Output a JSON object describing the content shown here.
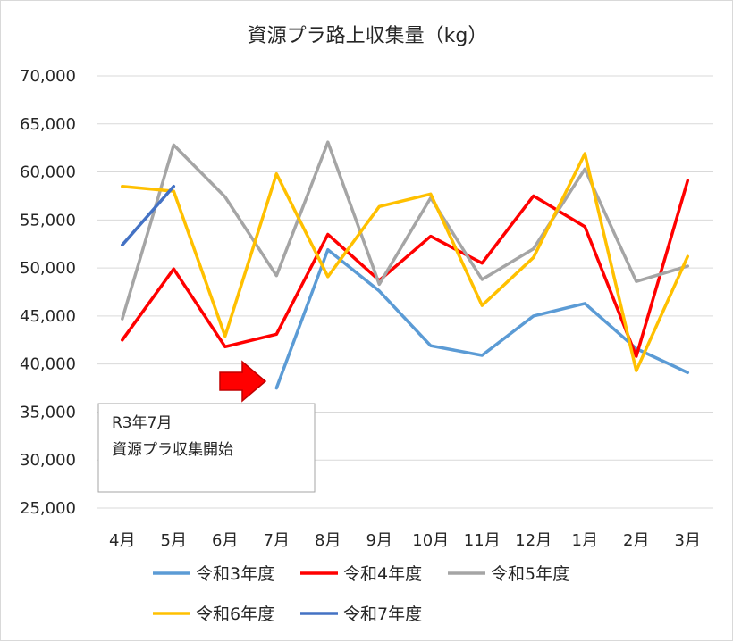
{
  "chart_data": {
    "type": "line",
    "title": "資源プラ路上収集量（kg）",
    "xlabel": "",
    "ylabel": "",
    "categories": [
      "4月",
      "5月",
      "6月",
      "7月",
      "8月",
      "9月",
      "10月",
      "11月",
      "12月",
      "1月",
      "2月",
      "3月"
    ],
    "ylim": [
      25000,
      70000
    ],
    "yticks": [
      25000,
      30000,
      35000,
      40000,
      45000,
      50000,
      55000,
      60000,
      65000,
      70000
    ],
    "ytick_labels": [
      "25,000",
      "30,000",
      "35,000",
      "40,000",
      "45,000",
      "50,000",
      "55,000",
      "60,000",
      "65,000",
      "70,000"
    ],
    "grid": true,
    "legend_position": "bottom",
    "series": [
      {
        "name": "令和3年度",
        "color": "#5b9bd5",
        "values": [
          null,
          null,
          null,
          37500,
          51900,
          47600,
          41900,
          40900,
          45000,
          46300,
          41600,
          39100
        ]
      },
      {
        "name": "令和4年度",
        "color": "#ff0000",
        "values": [
          42500,
          49900,
          41800,
          43100,
          53500,
          48700,
          53300,
          50500,
          57500,
          54300,
          40800,
          59100
        ]
      },
      {
        "name": "令和5年度",
        "color": "#a5a5a5",
        "values": [
          44700,
          62800,
          57400,
          49200,
          63100,
          48300,
          57300,
          48800,
          52000,
          60300,
          48600,
          50200
        ]
      },
      {
        "name": "令和6年度",
        "color": "#ffc000",
        "values": [
          58500,
          58000,
          42900,
          59800,
          49100,
          56400,
          57700,
          46100,
          51100,
          61900,
          39300,
          51200
        ]
      },
      {
        "name": "令和7年度",
        "color": "#4472c4",
        "values": [
          52400,
          58500,
          null,
          null,
          null,
          null,
          null,
          null,
          null,
          null,
          null,
          null
        ]
      }
    ],
    "annotation": {
      "lines": [
        "R3年7月",
        "資源プラ収集開始"
      ],
      "arrow_color": "#ff0000",
      "arrow_points_to": "7月"
    }
  }
}
